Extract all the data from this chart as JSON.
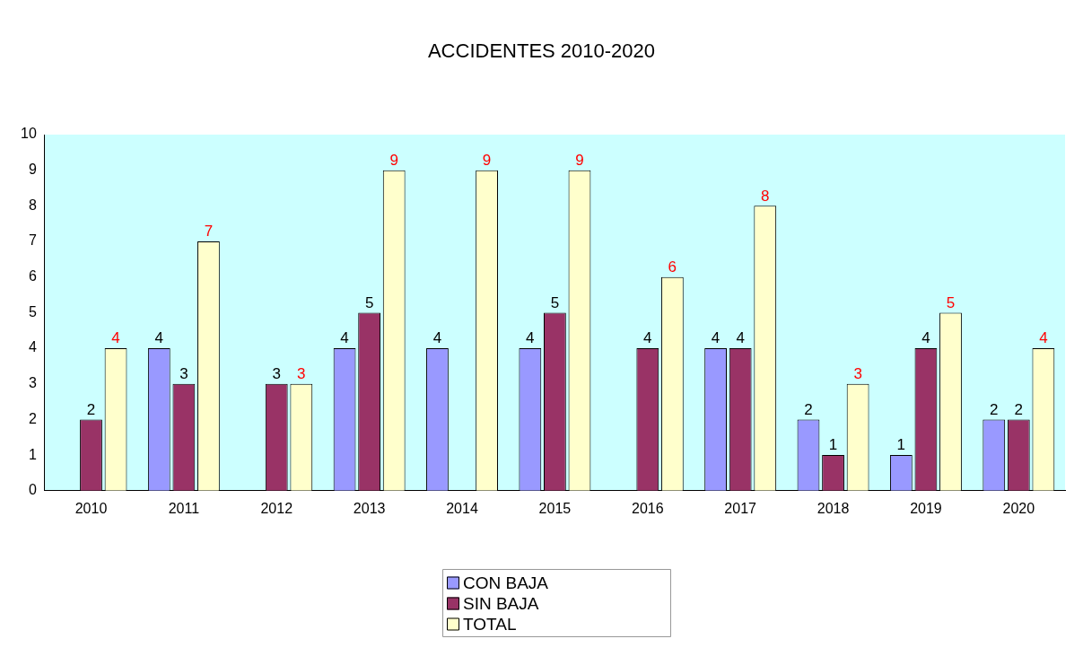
{
  "chart_data": {
    "type": "bar",
    "title": "ACCIDENTES 2010-2020",
    "categories": [
      "2010",
      "2011",
      "2012",
      "2013",
      "2014",
      "2015",
      "2016",
      "2017",
      "2018",
      "2019",
      "2020"
    ],
    "series": [
      {
        "name": "CON BAJA",
        "color": "#9999ff",
        "values": [
          0,
          4,
          0,
          4,
          4,
          4,
          0,
          4,
          2,
          1,
          2
        ],
        "value_labels": [
          null,
          "4",
          null,
          "4",
          "4",
          "4",
          null,
          "4",
          "2",
          "1",
          "2"
        ]
      },
      {
        "name": "SIN BAJA",
        "color": "#993366",
        "values": [
          2,
          3,
          3,
          5,
          0,
          5,
          4,
          4,
          1,
          4,
          2
        ],
        "value_labels": [
          "2",
          "3",
          "3",
          "5",
          null,
          "5",
          "4",
          "4",
          "1",
          "4",
          "2"
        ]
      },
      {
        "name": "TOTAL",
        "color": "#ffffcc",
        "values": [
          4,
          7,
          3,
          9,
          9,
          9,
          6,
          8,
          3,
          5,
          4
        ],
        "value_labels": [
          "4",
          "7",
          "3",
          "9",
          "9",
          "9",
          "6",
          "8",
          "3",
          "5",
          "4"
        ]
      }
    ],
    "ylim": [
      0,
      10
    ],
    "yticks": [
      0,
      1,
      2,
      3,
      4,
      5,
      6,
      7,
      8,
      9,
      10
    ],
    "grid": false,
    "legend": "bottom"
  }
}
